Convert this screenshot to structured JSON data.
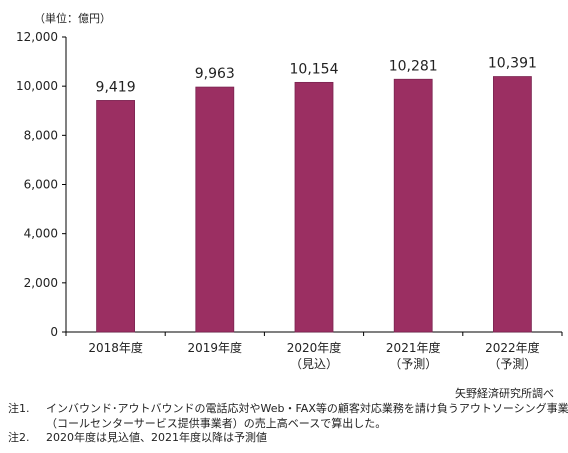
{
  "colors": {
    "bar": "#9b2f62",
    "bar_stroke": "#7a2450",
    "axis": "#000000",
    "text": "#222222"
  },
  "unit_label": "（単位：億円）",
  "source": "矢野経済研究所調べ",
  "notes": [
    {
      "id": "注1.",
      "lines": [
        "インバウンド･アウトバウンドの電話応対やWeb・FAX等の顧客対応業務を請け負うアウトソーシング事業者",
        "（コールセンターサービス提供事業者）の売上高ベースで算出した。"
      ]
    },
    {
      "id": "注2.",
      "lines": [
        "2020年度は見込値、2021年度以降は予測値"
      ]
    }
  ],
  "chart_data": {
    "type": "bar",
    "title": "",
    "xlabel": "",
    "ylabel": "",
    "categories": [
      {
        "label": "2018年度",
        "sublabel": ""
      },
      {
        "label": "2019年度",
        "sublabel": ""
      },
      {
        "label": "2020年度",
        "sublabel": "（見込）"
      },
      {
        "label": "2021年度",
        "sublabel": "（予測）"
      },
      {
        "label": "2022年度",
        "sublabel": "（予測）"
      }
    ],
    "values": [
      9419,
      9963,
      10154,
      10281,
      10391
    ],
    "data_labels": [
      "9,419",
      "9,963",
      "10,154",
      "10,281",
      "10,391"
    ],
    "ylim": [
      0,
      12000
    ],
    "yticks": [
      0,
      2000,
      4000,
      6000,
      8000,
      10000,
      12000
    ],
    "ytick_labels": [
      "0",
      "2,000",
      "4,000",
      "6,000",
      "8,000",
      "10,000",
      "12,000"
    ],
    "grid": false,
    "legend": "none"
  }
}
